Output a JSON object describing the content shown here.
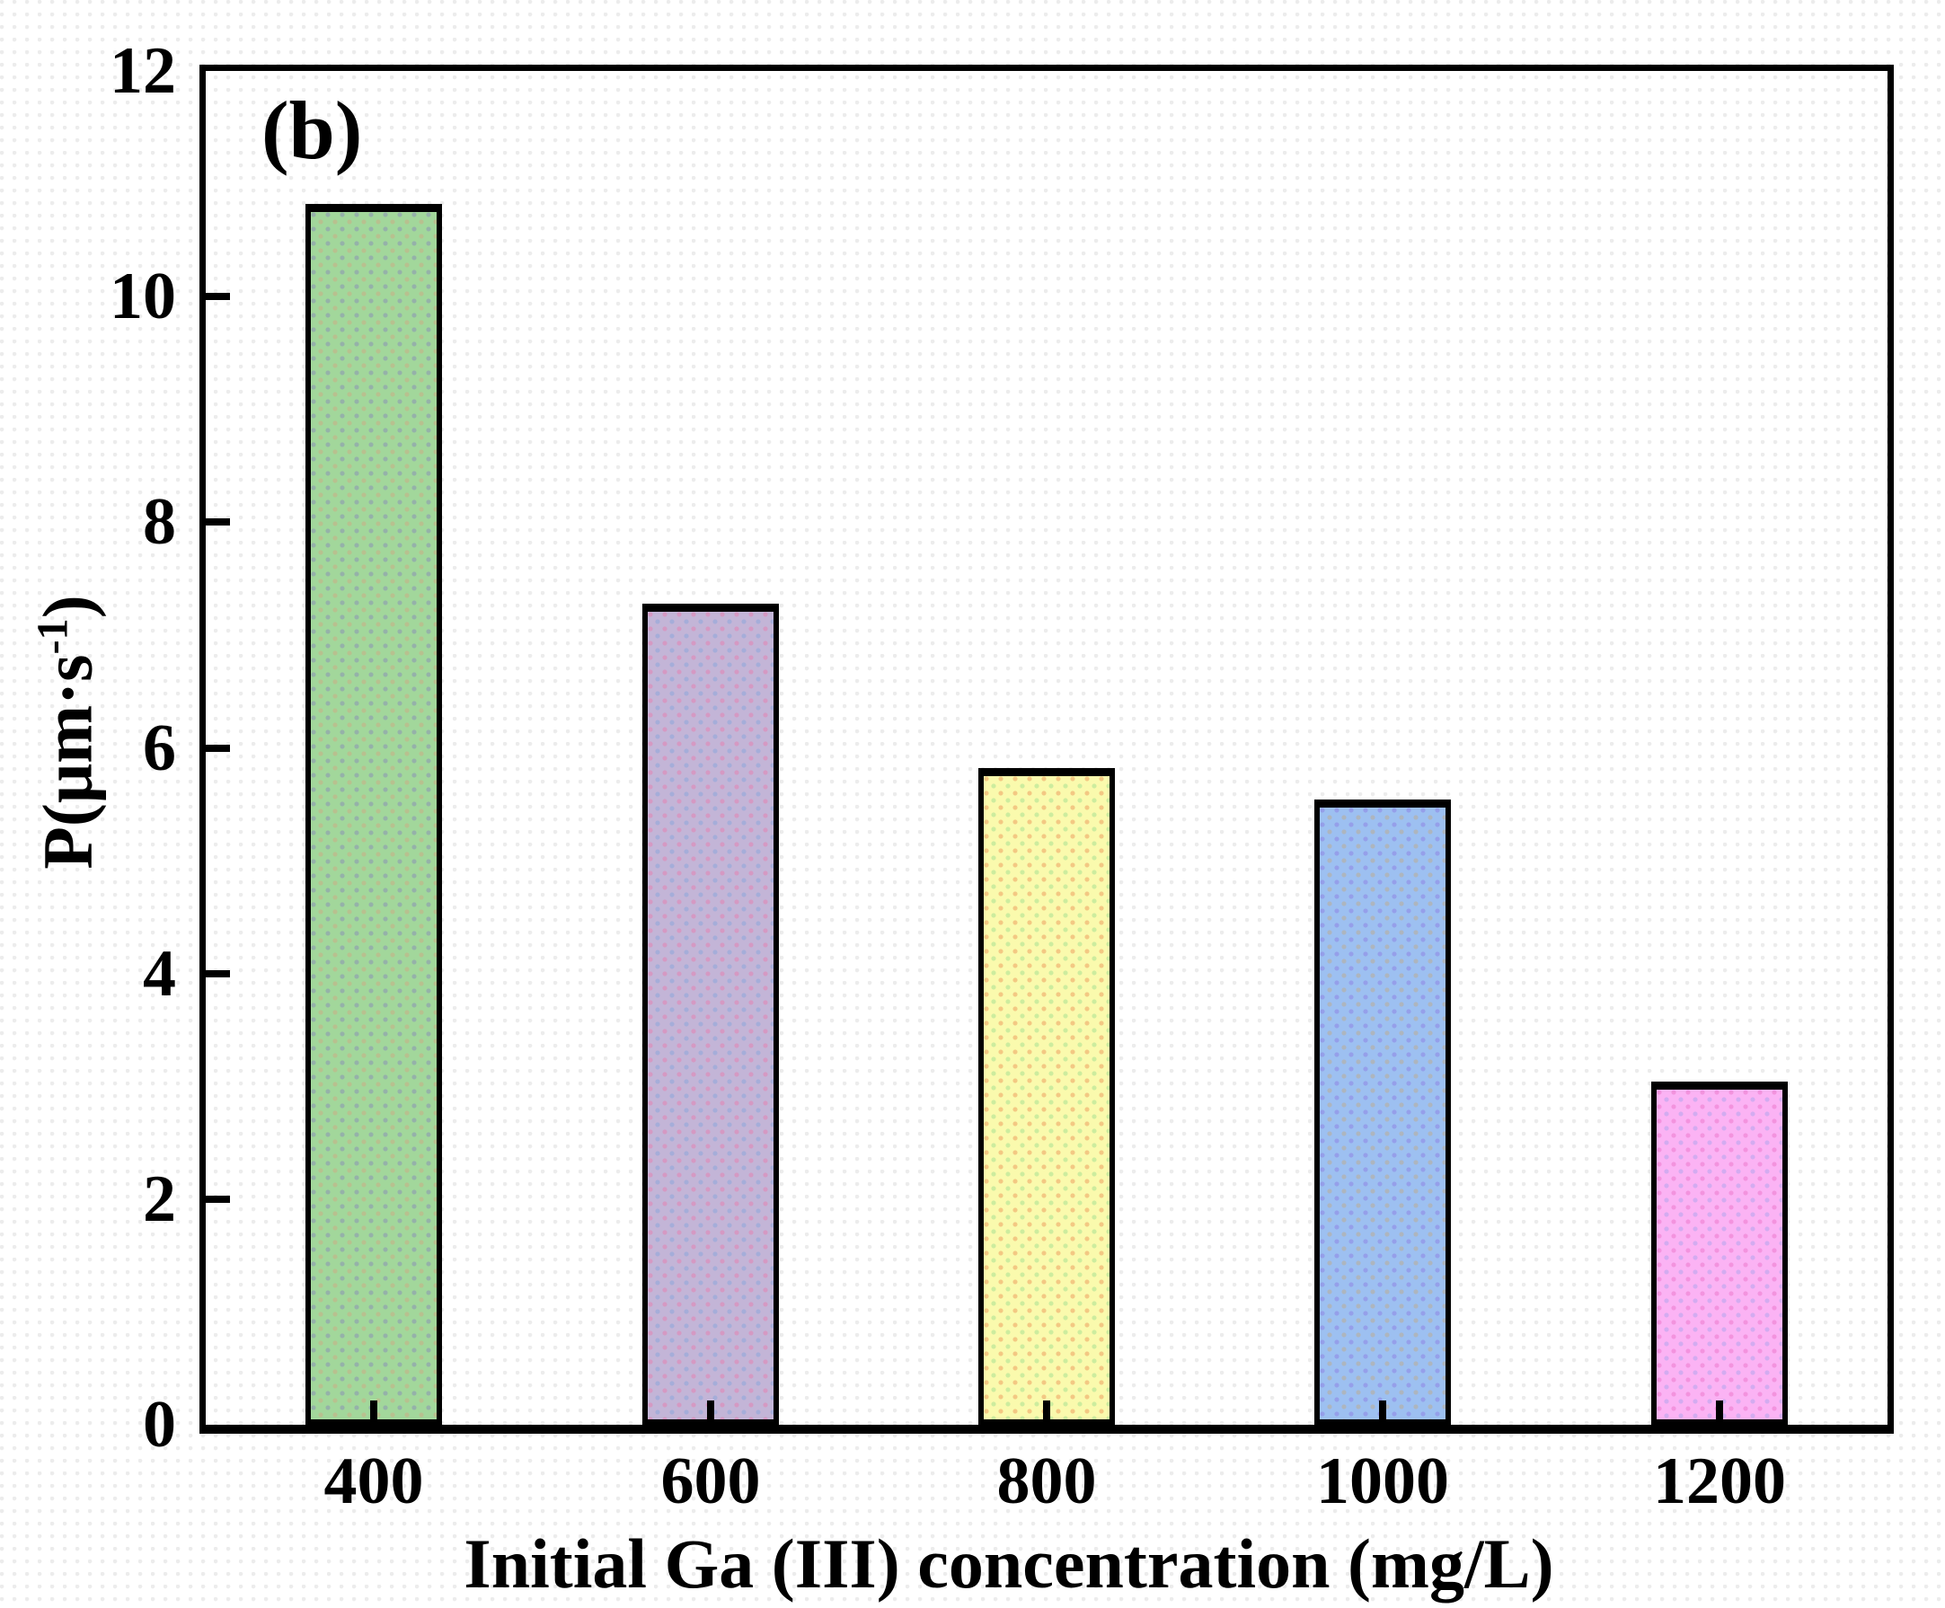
{
  "chart_data": {
    "type": "bar",
    "panel_label": "(b)",
    "categories": [
      "400",
      "600",
      "800",
      "1000",
      "1200"
    ],
    "values": [
      10.82,
      7.28,
      5.82,
      5.54,
      3.04
    ],
    "bar_colors": [
      "#a2d79b",
      "#c3b5d7",
      "#fafaad",
      "#9dc0f1",
      "#fbb3f4"
    ],
    "xlabel": "Initial Ga (III) concentration (mg/L)",
    "ylabel": "P(μm·s⁻¹)",
    "ylabel_parts": {
      "prefix": "P(μm·s",
      "superscript": "-1",
      "suffix": ")"
    },
    "ylim": [
      0,
      12
    ],
    "yticks": [
      "0",
      "2",
      "4",
      "6",
      "8",
      "10",
      "12"
    ],
    "ytick_values": [
      0,
      2,
      4,
      6,
      8,
      10,
      12
    ],
    "grid": false,
    "legend": null,
    "axis_color": "#000000",
    "text_color": "#000000"
  }
}
